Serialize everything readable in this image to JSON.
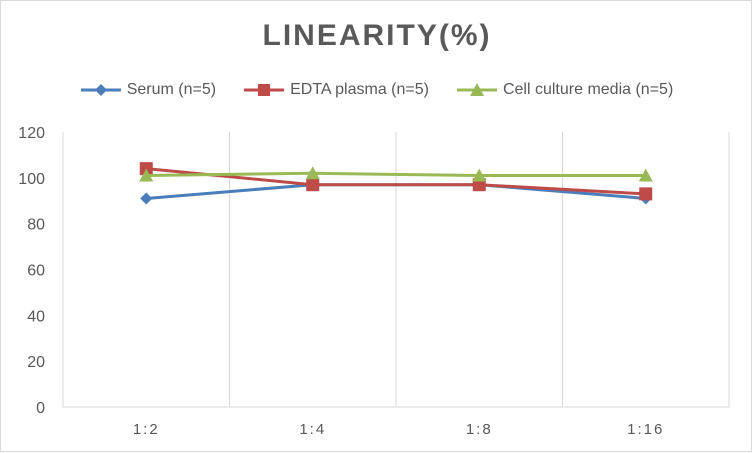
{
  "chart_data": {
    "type": "line",
    "title": "LINEARITY(%)",
    "categories": [
      "1:2",
      "1:4",
      "1:8",
      "1:16"
    ],
    "ylim": [
      0,
      120
    ],
    "yticks": [
      0,
      20,
      40,
      60,
      80,
      100,
      120
    ],
    "grid": "vertical",
    "legend": "top",
    "series": [
      {
        "name": "Serum (n=5)",
        "color": "#4a7ebb",
        "marker": "diamond",
        "values": [
          91,
          97,
          97,
          91
        ]
      },
      {
        "name": "EDTA plasma (n=5)",
        "color": "#be4b48",
        "marker": "square",
        "values": [
          104,
          97,
          97,
          93
        ]
      },
      {
        "name": "Cell culture media (n=5)",
        "color": "#98b954",
        "marker": "triangle",
        "values": [
          101,
          102,
          101,
          101
        ]
      }
    ]
  }
}
